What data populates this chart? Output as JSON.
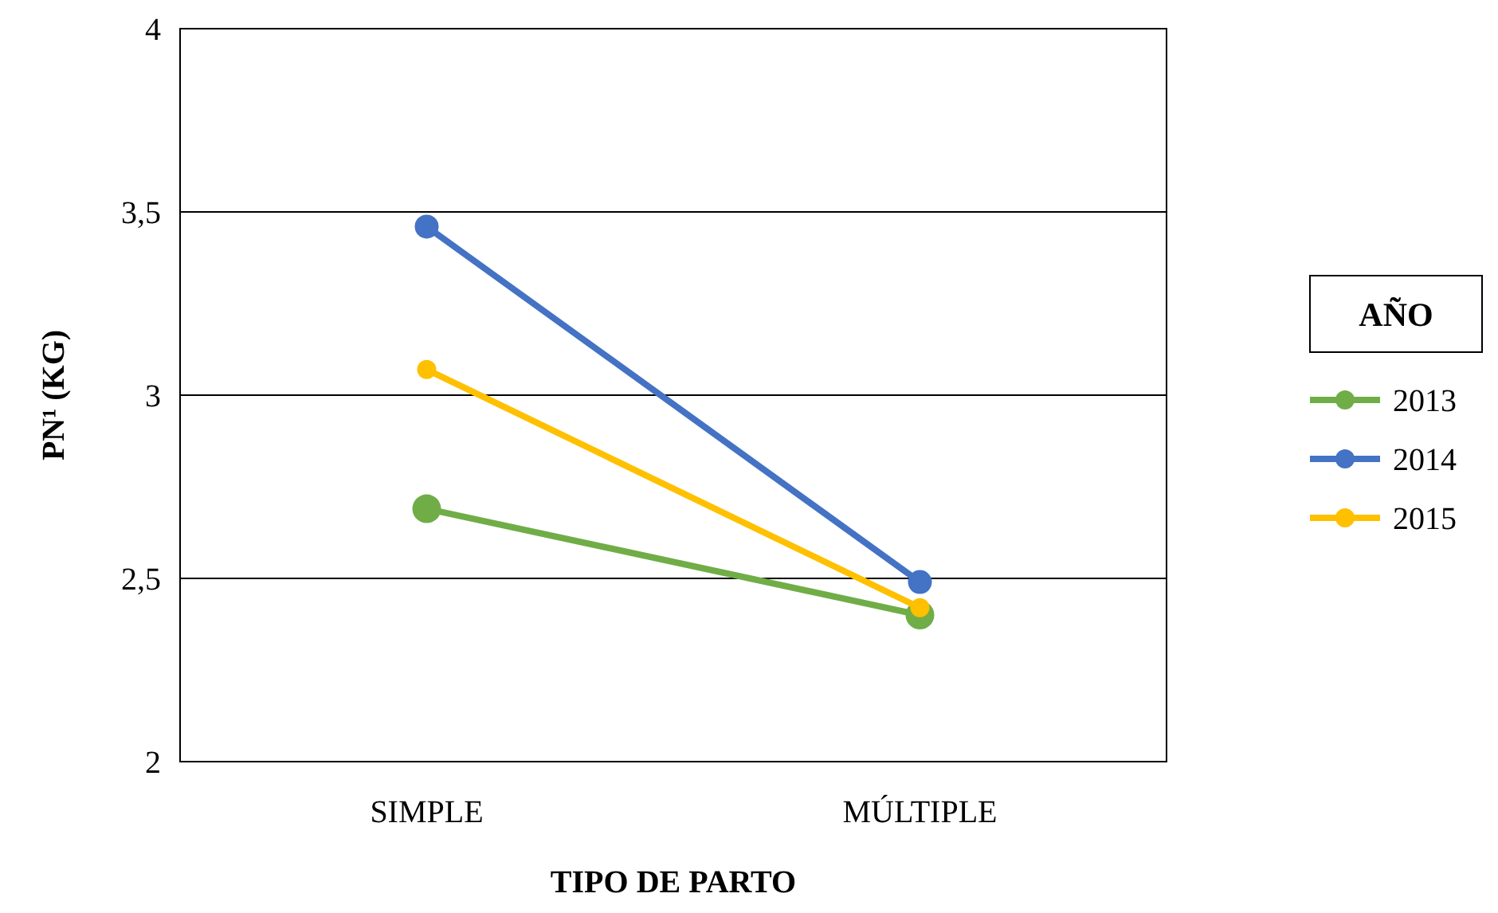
{
  "chart_data": {
    "type": "line",
    "xlabel": "TIPO DE PARTO",
    "ylabel": "PN¹ (KG)",
    "legend_title": "AÑO",
    "categories": [
      "SIMPLE",
      "MÚLTIPLE"
    ],
    "series": [
      {
        "name": "2013",
        "color": "#70ad47",
        "values": [
          2.69,
          2.4
        ]
      },
      {
        "name": "2014",
        "color": "#4472c4",
        "values": [
          3.46,
          2.49
        ]
      },
      {
        "name": "2015",
        "color": "#ffc000",
        "values": [
          3.07,
          2.42
        ]
      }
    ],
    "ylim": [
      2,
      4
    ],
    "yticks": [
      {
        "value": 2,
        "label": "2"
      },
      {
        "value": 2.5,
        "label": "2,5"
      },
      {
        "value": 3,
        "label": "3"
      },
      {
        "value": 3.5,
        "label": "3,5"
      },
      {
        "value": 4,
        "label": "4"
      }
    ],
    "grid": "y",
    "legend": "right",
    "marker": "circle",
    "line_style": "solid"
  }
}
